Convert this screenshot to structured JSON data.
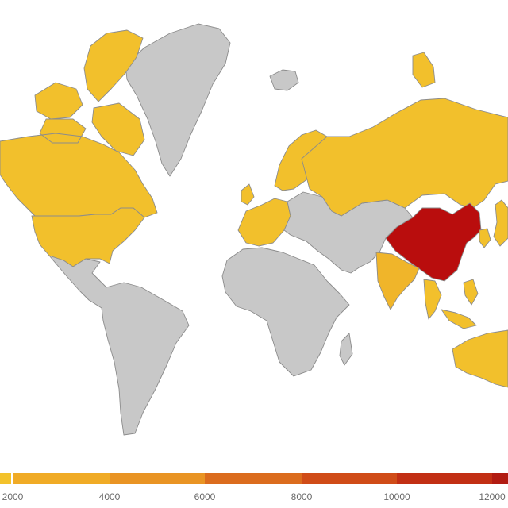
{
  "colors": {
    "no_data": "#c8c8c8",
    "border": "#8c8c8c",
    "low": "#f2c02c",
    "mid": "#f0b52a",
    "top": "#b90d0d"
  },
  "regions": [
    {
      "name": "Canada",
      "color_key": "low"
    },
    {
      "name": "United States",
      "color_key": "low"
    },
    {
      "name": "Greenland",
      "color_key": "no_data"
    },
    {
      "name": "Iceland",
      "color_key": "no_data"
    },
    {
      "name": "Scandinavia",
      "color_key": "low"
    },
    {
      "name": "Western Europe",
      "color_key": "low"
    },
    {
      "name": "Russia",
      "color_key": "low"
    },
    {
      "name": "China",
      "color_key": "top"
    },
    {
      "name": "India",
      "color_key": "mid"
    },
    {
      "name": "Japan",
      "color_key": "low"
    },
    {
      "name": "Korea",
      "color_key": "low"
    },
    {
      "name": "Southeast Asia",
      "color_key": "low"
    },
    {
      "name": "Australia",
      "color_key": "low"
    },
    {
      "name": "Latin America",
      "color_key": "no_data"
    },
    {
      "name": "Africa",
      "color_key": "no_data"
    },
    {
      "name": "Middle East & Central Asia",
      "color_key": "no_data"
    }
  ],
  "legend": {
    "bins": [
      {
        "color": "#f3c22b"
      },
      {
        "color": "#f0ab26"
      },
      {
        "color": "#e99424"
      },
      {
        "color": "#db6c1e"
      },
      {
        "color": "#d04c18"
      },
      {
        "color": "#c22f14"
      },
      {
        "color": "#b21b12"
      }
    ],
    "ticks": [
      "2000",
      "4000",
      "6000",
      "8000",
      "10000",
      "12000"
    ]
  }
}
